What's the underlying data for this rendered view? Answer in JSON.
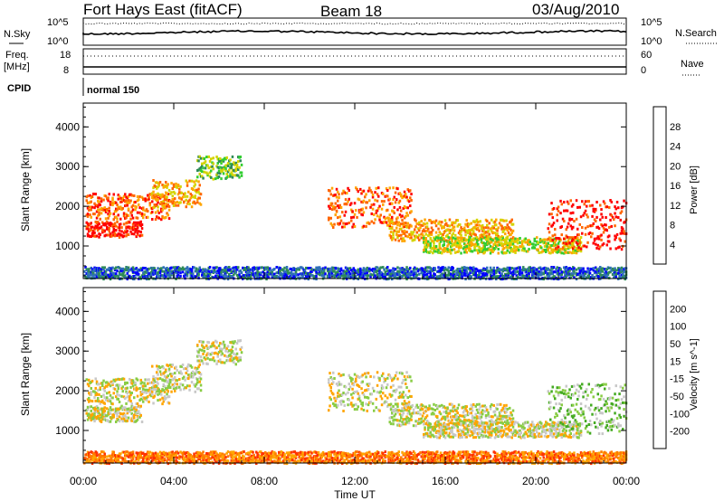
{
  "header": {
    "station": "Fort Hays East (fitACF)",
    "beam": "Beam 18",
    "date": "03/Aug/2010"
  },
  "noise_panel": {
    "left_label": "N.Sky",
    "left_ticks": [
      "10^5",
      "10^0"
    ],
    "right_label": "N.Search",
    "right_ticks": [
      "10^5",
      "10^0"
    ]
  },
  "freq_panel": {
    "left_label_1": "Freq.",
    "left_label_2": "[MHz]",
    "left_ticks": [
      "18",
      "8"
    ],
    "right_label": "Nave",
    "right_ticks": [
      "60",
      "0"
    ],
    "cpid_label": "CPID",
    "cpid_value": "normal 150"
  },
  "x_axis": {
    "label": "Time UT",
    "ticks": [
      "00:00",
      "04:00",
      "08:00",
      "12:00",
      "16:00",
      "20:00",
      "00:00"
    ]
  },
  "chart_data": [
    {
      "type": "heatmap",
      "title": "Power",
      "xlabel": "Time UT",
      "ylabel": "Slant Range [km]",
      "x_range_hours": [
        0,
        24
      ],
      "ylim": [
        180,
        4600
      ],
      "y_ticks": [
        "1000",
        "2000",
        "3000",
        "4000"
      ],
      "colorbar": {
        "label": "Power [dB]",
        "ticks": [
          "4",
          "8",
          "12",
          "16",
          "20",
          "24",
          "28"
        ],
        "colors": [
          "#0000ff",
          "#2e6fb8",
          "#2e8b57",
          "#32cd32",
          "#d4d400",
          "#ffa500",
          "#ff6600",
          "#ff0000"
        ]
      },
      "echo_bands": [
        {
          "t": [
            0.1,
            2.6
          ],
          "range": [
            1250,
            1650
          ],
          "level": 7
        },
        {
          "t": [
            0.1,
            3.8
          ],
          "range": [
            1700,
            2350
          ],
          "level": 6
        },
        {
          "t": [
            3.0,
            5.2
          ],
          "range": [
            2000,
            2700
          ],
          "level": 5
        },
        {
          "t": [
            5.0,
            7.0
          ],
          "range": [
            2700,
            3300
          ],
          "level": 3
        },
        {
          "t": [
            10.8,
            14.5
          ],
          "range": [
            1500,
            2500
          ],
          "level": 6
        },
        {
          "t": [
            13.5,
            19.0
          ],
          "range": [
            1150,
            1700
          ],
          "level": 5
        },
        {
          "t": [
            15.0,
            22.0
          ],
          "range": [
            850,
            1250
          ],
          "level": 4
        },
        {
          "t": [
            20.5,
            24.0
          ],
          "range": [
            950,
            2200
          ],
          "level": 7
        },
        {
          "t": [
            0.0,
            24.0
          ],
          "range": [
            200,
            500
          ],
          "level": 1
        }
      ]
    },
    {
      "type": "heatmap",
      "title": "Velocity",
      "xlabel": "Time UT",
      "ylabel": "Slant Range [km]",
      "x_range_hours": [
        0,
        24
      ],
      "ylim": [
        180,
        4600
      ],
      "y_ticks": [
        "1000",
        "2000",
        "3000",
        "4000"
      ],
      "colorbar": {
        "label": "Velocity [m s^-1]",
        "ticks": [
          "200",
          "100",
          "50",
          "15",
          "-15",
          "-50",
          "-100",
          "-200"
        ],
        "colors": [
          "#1f3fbf",
          "#2e6f4a",
          "#44aa22",
          "#88cc44",
          "#c8c8c8",
          "#ffa500",
          "#ff7a00",
          "#ff3300",
          "#ff0000"
        ]
      },
      "echo_bands": [
        {
          "t": [
            0.1,
            2.6
          ],
          "range": [
            1250,
            1650
          ],
          "level": 4
        },
        {
          "t": [
            0.1,
            3.8
          ],
          "range": [
            1700,
            2350
          ],
          "level": 4
        },
        {
          "t": [
            3.0,
            5.2
          ],
          "range": [
            2000,
            2700
          ],
          "level": 4
        },
        {
          "t": [
            5.0,
            7.0
          ],
          "range": [
            2700,
            3300
          ],
          "level": 4
        },
        {
          "t": [
            10.8,
            14.5
          ],
          "range": [
            1500,
            2500
          ],
          "level": 4
        },
        {
          "t": [
            13.5,
            19.0
          ],
          "range": [
            1150,
            1700
          ],
          "level": 4
        },
        {
          "t": [
            15.0,
            22.0
          ],
          "range": [
            850,
            1250
          ],
          "level": 4
        },
        {
          "t": [
            20.5,
            24.0
          ],
          "range": [
            950,
            2200
          ],
          "level": 3
        },
        {
          "t": [
            0.0,
            24.0
          ],
          "range": [
            200,
            500
          ],
          "level": 6
        }
      ]
    }
  ]
}
